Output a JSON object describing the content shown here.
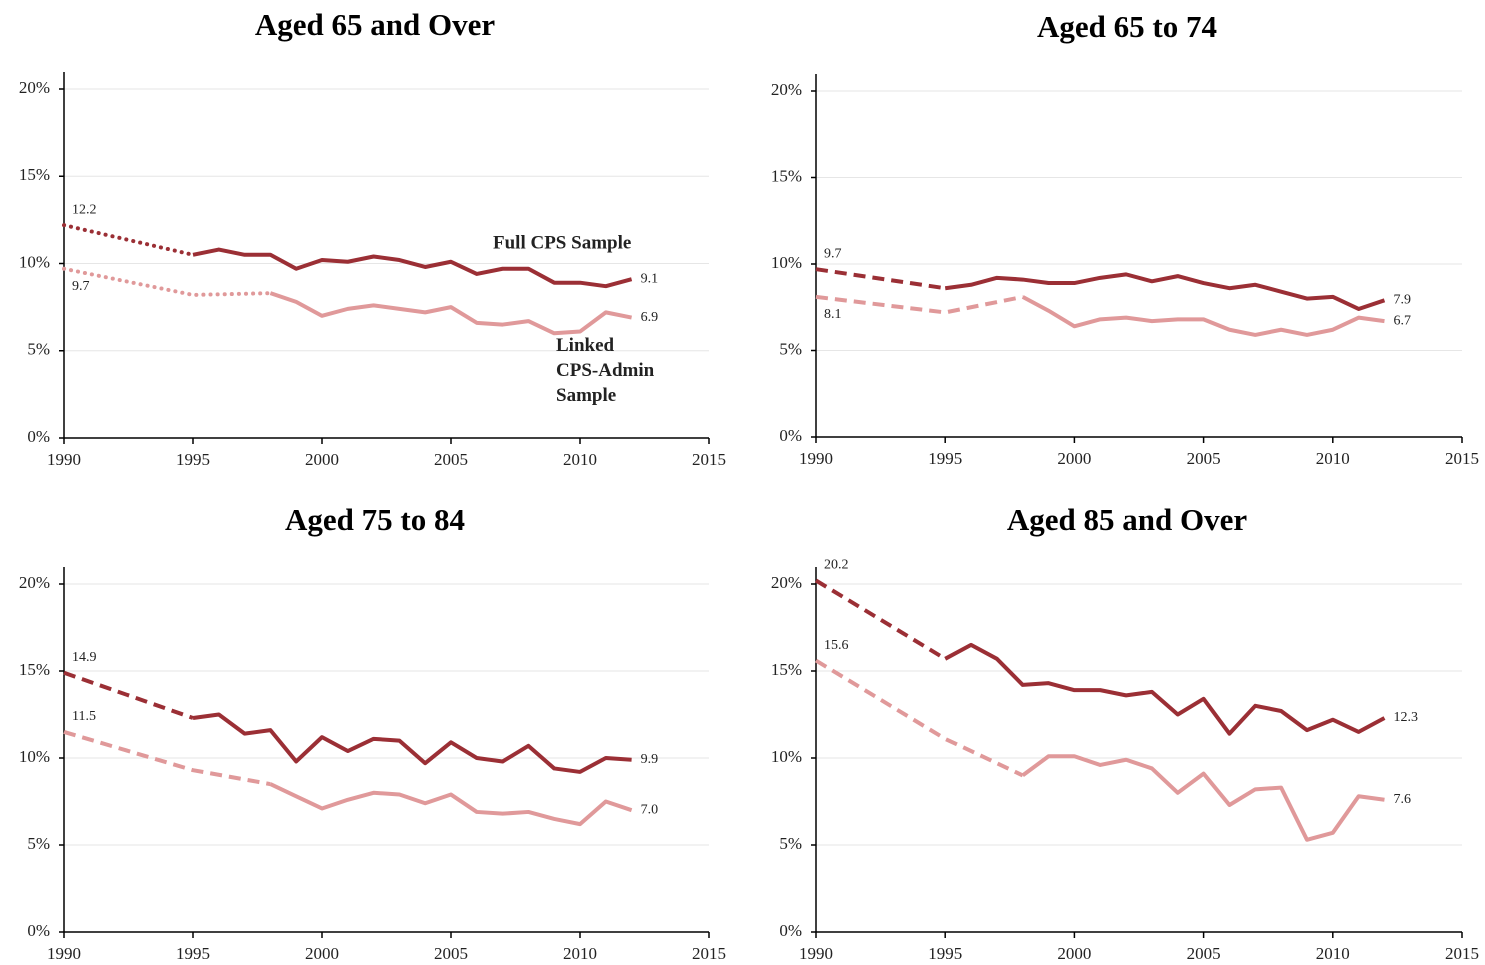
{
  "chart_data": [
    {
      "type": "line",
      "title": "Aged 65 and Over",
      "interpolated_style": "dotted",
      "grid": true,
      "xlim": [
        1990,
        2015
      ],
      "xticks": [
        1990,
        1995,
        2000,
        2005,
        2010,
        2015
      ],
      "ylim": [
        0,
        20
      ],
      "yticks": [
        {
          "value": 0,
          "label": "0%"
        },
        {
          "value": 5,
          "label": "5%"
        },
        {
          "value": 10,
          "label": "10%"
        },
        {
          "value": 15,
          "label": "15%"
        },
        {
          "value": 20,
          "label": "20%"
        }
      ],
      "series": [
        {
          "name": "Full CPS Sample",
          "color": "#9b2f35",
          "x": [
            1990,
            1995,
            1996,
            1997,
            1998,
            1999,
            2000,
            2001,
            2002,
            2003,
            2004,
            2005,
            2006,
            2007,
            2008,
            2009,
            2010,
            2011,
            2012
          ],
          "values": [
            12.2,
            10.5,
            10.8,
            10.5,
            10.5,
            9.7,
            10.2,
            10.1,
            10.4,
            10.2,
            9.8,
            10.1,
            9.4,
            9.7,
            9.7,
            8.9,
            8.9,
            8.7,
            9.1
          ],
          "value_labels": [
            "12.2",
            null,
            null,
            null,
            null,
            null,
            null,
            null,
            null,
            null,
            null,
            null,
            null,
            null,
            null,
            null,
            null,
            null,
            "9.1"
          ]
        },
        {
          "name": "Linked CPS-Admin Sample",
          "color": "#e0999a",
          "x": [
            1990,
            1995,
            1998,
            1999,
            2000,
            2001,
            2002,
            2003,
            2004,
            2005,
            2006,
            2007,
            2008,
            2009,
            2010,
            2011,
            2012
          ],
          "values": [
            9.7,
            8.2,
            8.3,
            7.8,
            7.0,
            7.4,
            7.6,
            7.4,
            7.2,
            7.5,
            6.6,
            6.5,
            6.7,
            6.0,
            6.1,
            7.2,
            6.9
          ],
          "value_labels": [
            "9.7",
            null,
            null,
            null,
            null,
            null,
            null,
            null,
            null,
            null,
            null,
            null,
            null,
            null,
            null,
            null,
            "6.9"
          ]
        }
      ]
    },
    {
      "type": "line",
      "title": "Aged 65 to 74",
      "interpolated_style": "dashed",
      "grid": true,
      "xlim": [
        1990,
        2015
      ],
      "xticks": [
        1990,
        1995,
        2000,
        2005,
        2010,
        2015
      ],
      "ylim": [
        0,
        20
      ],
      "yticks": [
        {
          "value": 0,
          "label": "0%"
        },
        {
          "value": 5,
          "label": "5%"
        },
        {
          "value": 10,
          "label": "10%"
        },
        {
          "value": 15,
          "label": "15%"
        },
        {
          "value": 20,
          "label": "20%"
        }
      ],
      "series": [
        {
          "color": "#9b2f35",
          "x": [
            1990,
            1995,
            1996,
            1997,
            1998,
            1999,
            2000,
            2001,
            2002,
            2003,
            2004,
            2005,
            2006,
            2007,
            2008,
            2009,
            2010,
            2011,
            2012
          ],
          "values": [
            9.7,
            8.6,
            8.8,
            9.2,
            9.1,
            8.9,
            8.9,
            9.2,
            9.4,
            9.0,
            9.3,
            8.9,
            8.6,
            8.8,
            8.4,
            8.0,
            8.1,
            7.4,
            7.9
          ],
          "value_labels": [
            "9.7",
            null,
            null,
            null,
            null,
            null,
            null,
            null,
            null,
            null,
            null,
            null,
            null,
            null,
            null,
            null,
            null,
            null,
            "7.9"
          ]
        },
        {
          "color": "#e0999a",
          "x": [
            1990,
            1995,
            1998,
            1999,
            2000,
            2001,
            2002,
            2003,
            2004,
            2005,
            2006,
            2007,
            2008,
            2009,
            2010,
            2011,
            2012
          ],
          "values": [
            8.1,
            7.2,
            8.1,
            7.3,
            6.4,
            6.8,
            6.9,
            6.7,
            6.8,
            6.8,
            6.2,
            5.9,
            6.2,
            5.9,
            6.2,
            6.9,
            6.7
          ],
          "value_labels": [
            "8.1",
            null,
            null,
            null,
            null,
            null,
            null,
            null,
            null,
            null,
            null,
            null,
            null,
            null,
            null,
            null,
            "6.7"
          ]
        }
      ]
    },
    {
      "type": "line",
      "title": "Aged 75 to 84",
      "interpolated_style": "dashed",
      "grid": true,
      "xlim": [
        1990,
        2015
      ],
      "xticks": [
        1990,
        1995,
        2000,
        2005,
        2010,
        2015
      ],
      "ylim": [
        0,
        20
      ],
      "yticks": [
        {
          "value": 0,
          "label": "0%"
        },
        {
          "value": 5,
          "label": "5%"
        },
        {
          "value": 10,
          "label": "10%"
        },
        {
          "value": 15,
          "label": "15%"
        },
        {
          "value": 20,
          "label": "20%"
        }
      ],
      "series": [
        {
          "color": "#9b2f35",
          "x": [
            1990,
            1995,
            1996,
            1997,
            1998,
            1999,
            2000,
            2001,
            2002,
            2003,
            2004,
            2005,
            2006,
            2007,
            2008,
            2009,
            2010,
            2011,
            2012
          ],
          "values": [
            14.9,
            12.3,
            12.5,
            11.4,
            11.6,
            9.8,
            11.2,
            10.4,
            11.1,
            11.0,
            9.7,
            10.9,
            10.0,
            9.8,
            10.7,
            9.4,
            9.2,
            10.0,
            9.9
          ],
          "value_labels": [
            "14.9",
            null,
            null,
            null,
            null,
            null,
            null,
            null,
            null,
            null,
            null,
            null,
            null,
            null,
            null,
            null,
            null,
            null,
            "9.9"
          ]
        },
        {
          "color": "#e0999a",
          "x": [
            1990,
            1995,
            1998,
            1999,
            2000,
            2001,
            2002,
            2003,
            2004,
            2005,
            2006,
            2007,
            2008,
            2009,
            2010,
            2011,
            2012
          ],
          "values": [
            11.5,
            9.3,
            8.5,
            7.8,
            7.1,
            7.6,
            8.0,
            7.9,
            7.4,
            7.9,
            6.9,
            6.8,
            6.9,
            6.5,
            6.2,
            7.5,
            7.0
          ],
          "value_labels": [
            "11.5",
            null,
            null,
            null,
            null,
            null,
            null,
            null,
            null,
            null,
            null,
            null,
            null,
            null,
            null,
            null,
            "7.0"
          ]
        }
      ]
    },
    {
      "type": "line",
      "title": "Aged 85 and Over",
      "interpolated_style": "dashed",
      "grid": true,
      "xlim": [
        1990,
        2015
      ],
      "xticks": [
        1990,
        1995,
        2000,
        2005,
        2010,
        2015
      ],
      "ylim": [
        0,
        20
      ],
      "yticks": [
        {
          "value": 0,
          "label": "0%"
        },
        {
          "value": 5,
          "label": "5%"
        },
        {
          "value": 10,
          "label": "10%"
        },
        {
          "value": 15,
          "label": "15%"
        },
        {
          "value": 20,
          "label": "20%"
        }
      ],
      "series": [
        {
          "color": "#9b2f35",
          "x": [
            1990,
            1995,
            1996,
            1997,
            1998,
            1999,
            2000,
            2001,
            2002,
            2003,
            2004,
            2005,
            2006,
            2007,
            2008,
            2009,
            2010,
            2011,
            2012
          ],
          "values": [
            20.2,
            15.7,
            16.5,
            15.7,
            14.2,
            14.3,
            13.9,
            13.9,
            13.6,
            13.8,
            12.5,
            13.4,
            11.4,
            13.0,
            12.7,
            11.6,
            12.2,
            11.5,
            12.3
          ],
          "value_labels": [
            "20.2",
            null,
            null,
            null,
            null,
            null,
            null,
            null,
            null,
            null,
            null,
            null,
            null,
            null,
            null,
            null,
            null,
            null,
            "12.3"
          ]
        },
        {
          "color": "#e0999a",
          "x": [
            1990,
            1995,
            1998,
            1999,
            2000,
            2001,
            2002,
            2003,
            2004,
            2005,
            2006,
            2007,
            2008,
            2009,
            2010,
            2011,
            2012
          ],
          "values": [
            15.6,
            11.1,
            9.0,
            10.1,
            10.1,
            9.6,
            9.9,
            9.4,
            8.0,
            9.1,
            7.3,
            8.2,
            8.3,
            5.3,
            5.7,
            7.8,
            7.6
          ],
          "value_labels": [
            "15.6",
            null,
            null,
            null,
            null,
            null,
            null,
            null,
            null,
            null,
            null,
            null,
            null,
            null,
            null,
            null,
            "7.6"
          ]
        }
      ]
    }
  ]
}
